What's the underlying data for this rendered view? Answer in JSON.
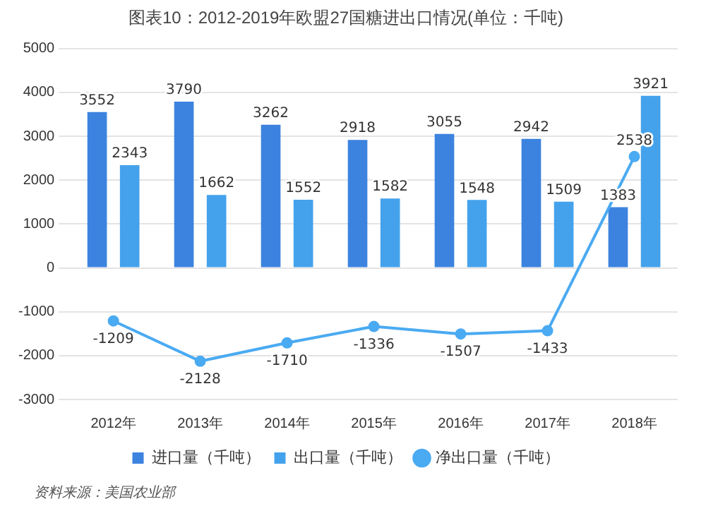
{
  "chart_data": {
    "type": "bar",
    "title": "图表10：2012-2019年欧盟27国糖进出口情况(单位：千吨)",
    "categories": [
      "2012年",
      "2013年",
      "2014年",
      "2015年",
      "2016年",
      "2017年",
      "2018年"
    ],
    "series": [
      {
        "name": "进口量（千吨）",
        "color": "#3c83df",
        "values": [
          3552,
          3790,
          3262,
          2918,
          3055,
          2942,
          1383
        ]
      },
      {
        "name": "出口量（千吨）",
        "color": "#44a2ec",
        "values": [
          2343,
          1662,
          1552,
          1582,
          1548,
          1509,
          3921
        ]
      },
      {
        "name": "净出口量（千吨）",
        "type": "line",
        "color": "#4aaaf2",
        "values": [
          -1209,
          -2128,
          -1710,
          -1336,
          -1507,
          -1433,
          2538
        ]
      }
    ],
    "ylim": [
      -3000,
      5000
    ],
    "yticks": [
      -3000,
      -2000,
      -1000,
      0,
      1000,
      2000,
      3000,
      4000,
      5000
    ],
    "grid": "y",
    "legend": "bottom",
    "data_labels": true,
    "marker": "circle",
    "line_style": "solid",
    "annotations": [
      "资料来源：美国农业部"
    ]
  }
}
